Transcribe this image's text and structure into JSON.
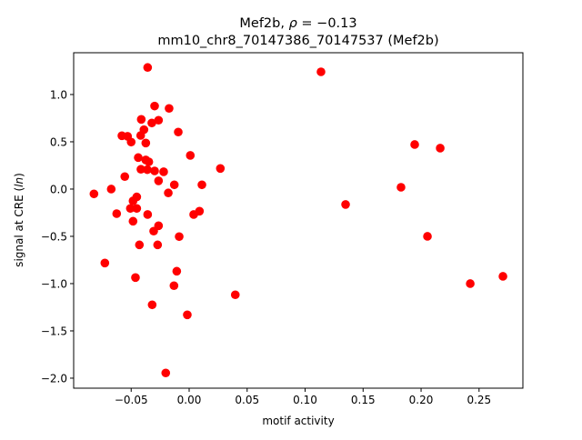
{
  "chart_data": {
    "type": "scatter",
    "title_line1_prefix": "Mef2b, ",
    "title_line1_symbol": "ρ",
    "title_line1_suffix": " = −0.13",
    "title_line2": "mm10_chr8_70147386_70147537 (Mef2b)",
    "xlabel": "motif activity",
    "ylabel_prefix": "signal at CRE (",
    "ylabel_italic": "ln",
    "ylabel_suffix": ")",
    "xlim": [
      -0.0996,
      0.2878
    ],
    "ylim": [
      -2.106,
      1.442
    ],
    "xticks": [
      -0.05,
      0.0,
      0.05,
      0.1,
      0.15,
      0.2,
      0.25
    ],
    "xtick_labels": [
      "−0.05",
      "0.00",
      "0.05",
      "0.10",
      "0.15",
      "0.20",
      "0.25"
    ],
    "yticks": [
      -2.0,
      -1.5,
      -1.0,
      -0.5,
      0.0,
      0.5,
      1.0
    ],
    "ytick_labels": [
      "−2.0",
      "−1.5",
      "−1.0",
      "−0.5",
      "0.0",
      "0.5",
      "1.0"
    ],
    "grid": false,
    "marker_color": "#ff0000",
    "points": [
      [
        -0.0358,
        1.286
      ],
      [
        -0.0298,
        0.878
      ],
      [
        -0.0173,
        0.853
      ],
      [
        -0.0413,
        0.737
      ],
      [
        -0.0264,
        0.728
      ],
      [
        -0.0322,
        0.699
      ],
      [
        -0.039,
        0.628
      ],
      [
        -0.0418,
        0.567
      ],
      [
        -0.058,
        0.564
      ],
      [
        -0.0531,
        0.558
      ],
      [
        -0.05,
        0.497
      ],
      [
        -0.0374,
        0.487
      ],
      [
        -0.0094,
        0.603
      ],
      [
        0.001,
        0.356
      ],
      [
        -0.0439,
        0.333
      ],
      [
        -0.0374,
        0.308
      ],
      [
        -0.0348,
        0.288
      ],
      [
        0.0269,
        0.218
      ],
      [
        -0.0416,
        0.209
      ],
      [
        -0.0361,
        0.205
      ],
      [
        -0.0298,
        0.192
      ],
      [
        -0.022,
        0.183
      ],
      [
        -0.0555,
        0.132
      ],
      [
        -0.0264,
        0.087
      ],
      [
        -0.0128,
        0.045
      ],
      [
        0.011,
        0.045
      ],
      [
        -0.0821,
        -0.051
      ],
      [
        -0.0672,
        0.0
      ],
      [
        -0.018,
        -0.041
      ],
      [
        -0.0452,
        -0.083
      ],
      [
        -0.0484,
        -0.125
      ],
      [
        -0.0507,
        -0.205
      ],
      [
        -0.0452,
        -0.205
      ],
      [
        -0.0625,
        -0.26
      ],
      [
        -0.0358,
        -0.269
      ],
      [
        0.0039,
        -0.269
      ],
      [
        0.0089,
        -0.234
      ],
      [
        -0.0484,
        -0.34
      ],
      [
        -0.0264,
        -0.388
      ],
      [
        -0.0306,
        -0.445
      ],
      [
        -0.0086,
        -0.503
      ],
      [
        -0.0429,
        -0.59
      ],
      [
        -0.0272,
        -0.59
      ],
      [
        -0.0727,
        -0.782
      ],
      [
        -0.0107,
        -0.869
      ],
      [
        -0.0463,
        -0.936
      ],
      [
        -0.0131,
        -1.022
      ],
      [
        0.0398,
        -1.118
      ],
      [
        -0.0319,
        -1.224
      ],
      [
        -0.0016,
        -1.33
      ],
      [
        -0.0202,
        -1.945
      ],
      [
        0.1137,
        1.24
      ],
      [
        0.1945,
        0.471
      ],
      [
        0.2165,
        0.433
      ],
      [
        0.1827,
        0.019
      ],
      [
        0.1349,
        -0.163
      ],
      [
        0.2055,
        -0.5
      ],
      [
        0.2424,
        -1.0
      ],
      [
        0.2706,
        -0.923
      ]
    ]
  }
}
